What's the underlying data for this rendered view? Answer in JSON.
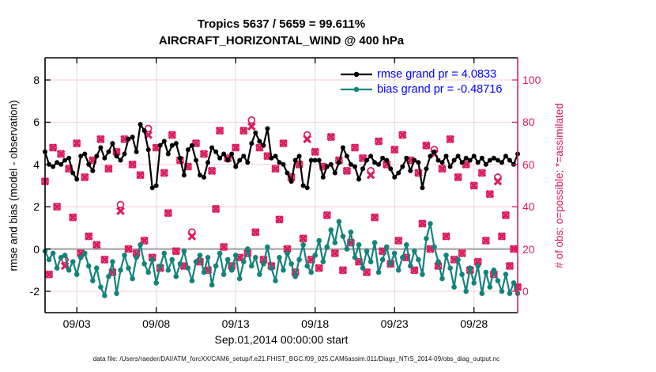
{
  "chart": {
    "title_line1": "Tropics 5637 / 5659 = 99.611%",
    "title_line2": "AIRCRAFT_HORIZONTAL_WIND @ 400 hPa",
    "xlabel": "Sep.01,2014 00:00:00 start",
    "ylabel_left": "rmse and bias (model - observation)",
    "ylabel_right": "# of obs: o=possible; *=assimilated",
    "footer": "data file: /Users/raeder/DAI/ATM_forcXX/CAM6_setup/f.e21.FHIST_BGC.f09_025.CAM6assim.011/Diags_NTrS_2014-09/obs_diag_output.nc",
    "legend": [
      {
        "label": "rmse grand pr = 4.0833",
        "series": "rmse"
      },
      {
        "label": "bias grand pr = -0.48716",
        "series": "bias"
      }
    ],
    "colors": {
      "rmse": "#000000",
      "bias": "#13837b",
      "obs": "#dc1c5e",
      "legend_text": "#0000ff",
      "grid_h": "#f5cfd9",
      "grid_v": "#d9d9d9",
      "zero_line": "#b0b0b0",
      "axis": "#000000"
    }
  },
  "chart_data": {
    "type": "line",
    "x_start_day": 0,
    "x_step_day": 0.25,
    "x_range_days": [
      0,
      29.75
    ],
    "x_tick_days": [
      2,
      7,
      12,
      17,
      22,
      27
    ],
    "x_tick_labels": [
      "09/03",
      "09/08",
      "09/13",
      "09/18",
      "09/23",
      "09/28"
    ],
    "y_left": {
      "ticks": [
        -2,
        0,
        2,
        4,
        6,
        8
      ],
      "range": [
        -3.01,
        9.05
      ]
    },
    "y_right": {
      "ticks": [
        0,
        20,
        40,
        60,
        80,
        100
      ],
      "range": [
        -10.1,
        110.5
      ]
    },
    "zero_line": 0,
    "series": [
      {
        "name": "rmse",
        "axis": "left",
        "marker": "filled-circle",
        "values": [
          4.6,
          4.0,
          3.9,
          4.1,
          4.0,
          4.2,
          4.3,
          3.6,
          3.3,
          4.4,
          4.5,
          4.0,
          3.7,
          4.4,
          4.8,
          4.3,
          4.6,
          5.0,
          4.4,
          4.2,
          4.5,
          5.2,
          5.3,
          4.6,
          5.9,
          5.6,
          4.7,
          2.9,
          3.0,
          4.9,
          5.1,
          4.5,
          4.9,
          5.0,
          4.3,
          3.5,
          4.7,
          4.9,
          4.2,
          3.5,
          3.4,
          4.1,
          4.8,
          4.6,
          4.3,
          4.5,
          4.2,
          4.5,
          3.9,
          4.2,
          4.4,
          4.1,
          5.0,
          5.5,
          5.1,
          4.9,
          5.7,
          4.3,
          4.4,
          4.1,
          4.0,
          3.6,
          3.2,
          4.2,
          4.4,
          3.0,
          2.9,
          4.2,
          4.2,
          4.2,
          3.4,
          3.9,
          4.0,
          3.6,
          4.1,
          4.8,
          4.4,
          4.0,
          3.9,
          3.3,
          3.8,
          4.2,
          4.4,
          4.1,
          4.0,
          4.3,
          4.2,
          3.8,
          3.4,
          3.6,
          3.9,
          4.3,
          3.7,
          4.2,
          4.1,
          2.9,
          3.8,
          4.4,
          4.6,
          4.2,
          4.1,
          4.4,
          3.9,
          4.2,
          4.4,
          4.1,
          4.3,
          4.2,
          4.4,
          4.1,
          4.3,
          4.0,
          4.2,
          4.3,
          4.2,
          4.1,
          4.4,
          4.2,
          4.0,
          4.5
        ]
      },
      {
        "name": "bias",
        "axis": "left",
        "marker": "filled-circle",
        "values": [
          -0.1,
          -0.5,
          -0.2,
          -0.9,
          -0.4,
          -0.3,
          -1.0,
          -0.6,
          -1.2,
          -0.4,
          -0.2,
          -0.8,
          -1.5,
          -0.9,
          -1.8,
          -2.2,
          -1.3,
          -0.6,
          -2.1,
          -1.0,
          -0.3,
          -0.9,
          -1.4,
          -0.4,
          0.2,
          -0.7,
          -1.1,
          -0.5,
          -1.6,
          -0.8,
          -0.2,
          -1.0,
          -0.5,
          -1.3,
          -0.7,
          -0.1,
          -0.9,
          -1.5,
          -0.6,
          -0.3,
          -1.1,
          -0.4,
          -1.7,
          -0.8,
          -0.2,
          -1.2,
          -0.5,
          -1.0,
          -0.3,
          -1.4,
          -0.6,
          0.0,
          -0.8,
          -0.4,
          -1.2,
          -0.7,
          0.1,
          -0.9,
          -1.5,
          -0.4,
          -1.0,
          -0.2,
          -0.7,
          -1.3,
          -0.5,
          0.2,
          -0.8,
          -1.1,
          -0.3,
          0.4,
          -0.6,
          0.1,
          0.9,
          0.3,
          1.3,
          0.6,
          0.0,
          0.8,
          -0.4,
          0.2,
          -0.9,
          -0.1,
          -0.6,
          0.3,
          -1.1,
          -0.5,
          0.1,
          -0.7,
          -0.2,
          -1.0,
          -0.4,
          0.2,
          -0.8,
          -0.1,
          -0.5,
          -1.2,
          0.5,
          1.2,
          0.1,
          -0.6,
          -1.4,
          -0.3,
          -0.9,
          -1.8,
          -0.5,
          -1.2,
          -2.0,
          -0.9,
          -1.6,
          -0.8,
          -2.1,
          -1.1,
          -1.8,
          -1.0,
          -1.5,
          -2.0,
          -1.2,
          -2.1,
          -1.6,
          -2.1
        ]
      },
      {
        "name": "obs_possible",
        "axis": "right",
        "marker": "open-circle",
        "values": [
          52,
          8,
          68,
          40,
          65,
          15,
          58,
          35,
          70,
          18,
          54,
          26,
          62,
          22,
          72,
          15,
          58,
          9,
          66,
          41,
          72,
          20,
          60,
          18,
          55,
          24,
          77,
          16,
          68,
          11,
          56,
          37,
          74,
          19,
          62,
          12,
          59,
          28,
          70,
          14,
          65,
          10,
          57,
          39,
          76,
          21,
          63,
          12,
          68,
          16,
          76,
          18,
          81,
          28,
          68,
          15,
          64,
          12,
          58,
          34,
          70,
          20,
          54,
          9,
          60,
          25,
          74,
          15,
          66,
          11,
          59,
          36,
          73,
          18,
          62,
          10,
          57,
          23,
          68,
          14,
          63,
          9,
          57,
          35,
          71,
          19,
          60,
          13,
          67,
          24,
          74,
          16,
          62,
          10,
          56,
          32,
          69,
          20,
          67,
          12,
          58,
          26,
          72,
          15,
          54,
          18,
          60,
          10,
          50,
          14,
          56,
          24,
          46,
          8,
          54,
          26,
          36,
          12,
          20,
          2
        ]
      },
      {
        "name": "obs_assimilated",
        "axis": "right",
        "marker": "cross",
        "values": [
          52,
          8,
          68,
          40,
          65,
          12,
          58,
          35,
          70,
          18,
          54,
          26,
          62,
          22,
          72,
          15,
          58,
          9,
          66,
          38,
          72,
          20,
          60,
          18,
          55,
          24,
          74,
          16,
          68,
          11,
          56,
          37,
          74,
          19,
          62,
          12,
          59,
          26,
          70,
          14,
          65,
          10,
          57,
          39,
          76,
          21,
          63,
          12,
          68,
          16,
          76,
          18,
          78,
          28,
          68,
          15,
          64,
          12,
          58,
          34,
          70,
          20,
          54,
          9,
          60,
          25,
          72,
          15,
          66,
          11,
          59,
          36,
          73,
          18,
          62,
          10,
          57,
          23,
          68,
          14,
          63,
          9,
          55,
          35,
          71,
          19,
          60,
          13,
          67,
          24,
          74,
          16,
          62,
          10,
          56,
          32,
          69,
          20,
          65,
          12,
          58,
          26,
          72,
          15,
          54,
          18,
          60,
          10,
          50,
          14,
          56,
          24,
          46,
          8,
          52,
          26,
          36,
          12,
          20,
          2
        ]
      }
    ]
  }
}
